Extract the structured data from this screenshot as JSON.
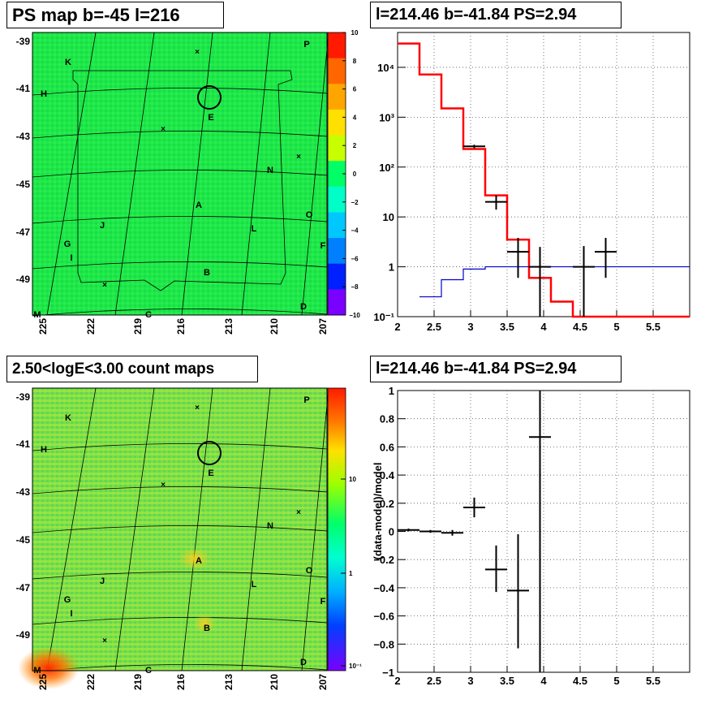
{
  "panels": {
    "map_top": {
      "title": "PS map b=-45 l=216",
      "colorbar": {
        "type": "linear",
        "range": [
          -10,
          10
        ],
        "ticks": [
          "10",
          "8",
          "6",
          "4",
          "2",
          "0",
          "−2",
          "−4",
          "−6",
          "−8",
          "−10"
        ],
        "colors": [
          "#ff1a00",
          "#ff6600",
          "#ffa500",
          "#ffe000",
          "#c8ff00",
          "#00ff66",
          "#00ffc8",
          "#00c8ff",
          "#0080ff",
          "#0020ff",
          "#7a00ff"
        ]
      },
      "background": "#1ae646"
    },
    "map_bottom": {
      "title": "2.50<logE<3.00 count maps",
      "colorbar": {
        "type": "log",
        "ticks": [
          "10",
          "1",
          "10⁻¹"
        ]
      },
      "background": "#7de04a"
    },
    "spectrum_top": {
      "title": "l=214.46 b=-41.84 PS=2.94"
    },
    "residual_bottom": {
      "title": "l=214.46 b=-41.84 PS=2.94"
    }
  },
  "map_axes": {
    "y_ticks": [
      "-39",
      "-41",
      "-43",
      "-45",
      "-47",
      "-49"
    ],
    "x_ticks": [
      "225",
      "222",
      "219",
      "216",
      "213",
      "210",
      "207"
    ],
    "source_labels": [
      "K",
      "P",
      "H",
      "E",
      "N",
      "A",
      "O",
      "J",
      "L",
      "G",
      "F",
      "I",
      "B",
      "M",
      "C",
      "D"
    ]
  },
  "chart_data": [
    {
      "type": "line",
      "ylog": true,
      "xlim": [
        2,
        6
      ],
      "ylim": [
        0.1,
        50000
      ],
      "xticks": [
        "2",
        "2.5",
        "3",
        "3.5",
        "4",
        "4.5",
        "5",
        "5.5"
      ],
      "yticks": [
        "10⁴",
        "10³",
        "10²",
        "10",
        "1",
        "10⁻¹"
      ],
      "grid": true,
      "series": [
        {
          "color": "#ff0000",
          "style": "step",
          "edges": [
            2,
            2.3,
            2.6,
            2.9,
            3.2,
            3.5,
            3.8,
            4.1,
            4.4,
            4.7,
            6
          ],
          "values": [
            30000,
            7200,
            1500,
            230,
            27,
            3.5,
            0.6,
            0.2,
            0.1,
            0.1
          ]
        },
        {
          "color": "#0000cc",
          "style": "step",
          "edges": [
            2.3,
            2.6,
            2.9,
            3.2,
            3.5,
            3.8,
            4.1,
            4.4,
            4.7,
            6
          ],
          "values": [
            0.25,
            0.55,
            0.9,
            1.0,
            1.0,
            1.0,
            1.0,
            1.0,
            1.0,
            1.0
          ]
        },
        {
          "color": "#000000",
          "style": "errorbar",
          "points": [
            {
              "x": 3.05,
              "y": 260,
              "xerr": 0.15,
              "ylo": 240,
              "yhi": 280
            },
            {
              "x": 3.35,
              "y": 20,
              "xerr": 0.15,
              "ylo": 14,
              "yhi": 27
            },
            {
              "x": 3.65,
              "y": 2.0,
              "xerr": 0.15,
              "ylo": 0.6,
              "yhi": 3.8
            },
            {
              "x": 3.95,
              "y": 1.0,
              "xerr": 0.15,
              "ylo": 0.1,
              "yhi": 2.5
            },
            {
              "x": 4.55,
              "y": 1.0,
              "xerr": 0.15,
              "ylo": 0.1,
              "yhi": 2.6
            },
            {
              "x": 4.85,
              "y": 2.0,
              "xerr": 0.15,
              "ylo": 0.6,
              "yhi": 3.8
            }
          ]
        }
      ]
    },
    {
      "type": "scatter",
      "xlim": [
        2,
        6
      ],
      "ylim": [
        -1,
        1
      ],
      "xticks": [
        "2",
        "2.5",
        "3",
        "3.5",
        "4",
        "4.5",
        "5",
        "5.5"
      ],
      "yticks": [
        "1",
        "0.8",
        "0.6",
        "0.4",
        "0.2",
        "0",
        "−0.2",
        "−0.4",
        "−0.6",
        "−0.8",
        "−1"
      ],
      "ytick_values": [
        1,
        0.8,
        0.6,
        0.4,
        0.2,
        0,
        -0.2,
        -0.4,
        -0.6,
        -0.8,
        -1
      ],
      "ylabel": "(data-model)/model",
      "grid": true,
      "series": [
        {
          "color": "#000000",
          "style": "errorbar",
          "points": [
            {
              "x": 2.15,
              "y": 0.01,
              "xerr": 0.15,
              "ylo": 0.0,
              "yhi": 0.02
            },
            {
              "x": 2.45,
              "y": 0.0,
              "xerr": 0.15,
              "ylo": -0.01,
              "yhi": 0.01
            },
            {
              "x": 2.75,
              "y": -0.01,
              "xerr": 0.15,
              "ylo": -0.03,
              "yhi": 0.01
            },
            {
              "x": 3.05,
              "y": 0.17,
              "xerr": 0.15,
              "ylo": 0.1,
              "yhi": 0.24
            },
            {
              "x": 3.35,
              "y": -0.27,
              "xerr": 0.15,
              "ylo": -0.43,
              "yhi": -0.1
            },
            {
              "x": 3.65,
              "y": -0.42,
              "xerr": 0.15,
              "ylo": -0.83,
              "yhi": -0.02
            },
            {
              "x": 3.95,
              "y": 0.67,
              "xerr": 0.15,
              "ylo": -1.0,
              "yhi": 1.0
            }
          ]
        }
      ]
    }
  ]
}
